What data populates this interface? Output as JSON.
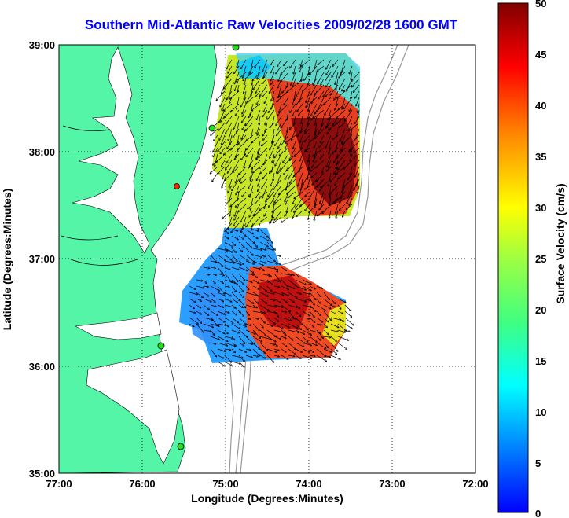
{
  "title": "Southern Mid-Atlantic Raw Velocities 2009/02/28 1600 GMT",
  "x_axis": {
    "label": "Longitude (Degrees:Minutes)",
    "ticks": [
      "77:00",
      "76:00",
      "75:00",
      "74:00",
      "73:00",
      "72:00"
    ]
  },
  "y_axis": {
    "label": "Latitude (Degrees:Minutes)",
    "ticks": [
      "39:00",
      "38:00",
      "37:00",
      "36:00",
      "35:00"
    ]
  },
  "colorbar": {
    "label": "Surface Velocity (cm/s)",
    "ticks": [
      "50",
      "45",
      "40",
      "35",
      "30",
      "25",
      "20",
      "15",
      "10",
      "5",
      "0"
    ],
    "min": 0,
    "max": 50
  },
  "map": {
    "lon_range": [
      -77,
      -72
    ],
    "lat_range": [
      35,
      39
    ],
    "land_color": "#55f5a8",
    "ocean_color": "#ffffff",
    "grid": "dotted"
  },
  "colors": {
    "title": "#0000ff",
    "station_green": "#22dd22",
    "station_red": "#ff2200"
  }
}
